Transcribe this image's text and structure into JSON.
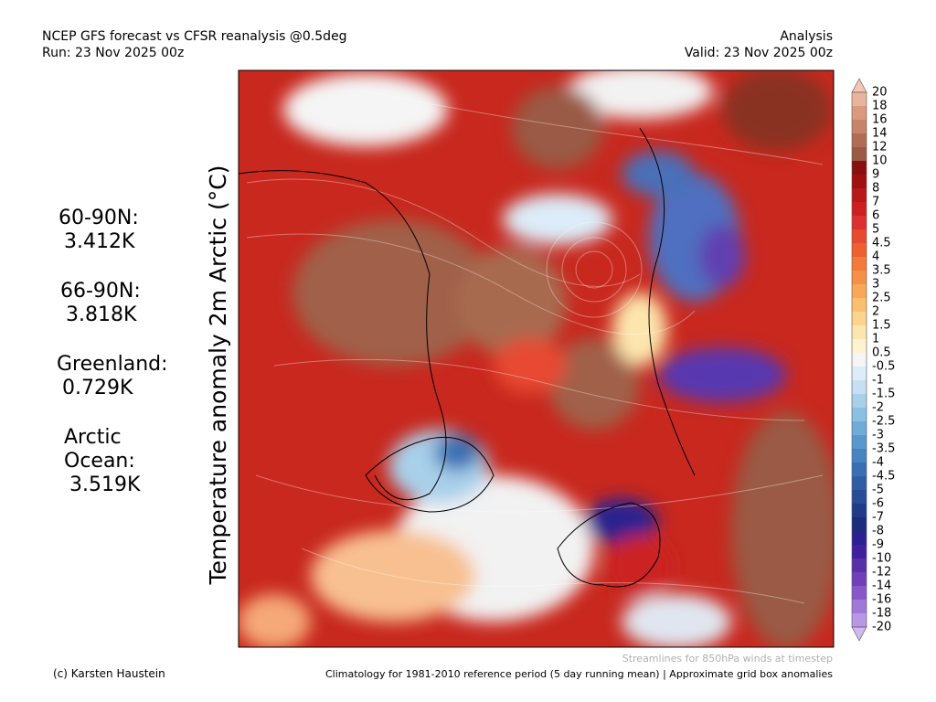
{
  "header": {
    "title": "NCEP GFS forecast vs CFSR reanalysis @0.5deg",
    "run": "Run: 23 Nov 2025 00z",
    "kind": "Analysis",
    "valid": "Valid: 23 Nov 2025 00z"
  },
  "axis_title": "Temperature anomaly 2m Arctic (°C)",
  "stats": [
    {
      "label": [
        "60-90N:"
      ],
      "value": "3.412K"
    },
    {
      "label": [
        "66-90N:"
      ],
      "value": "3.818K"
    },
    {
      "label": [
        "Greenland:"
      ],
      "value": "0.729K"
    },
    {
      "label": [
        "Arctic",
        "Ocean:"
      ],
      "value": "3.519K"
    }
  ],
  "colorbar": {
    "labels": [
      "20",
      "18",
      "16",
      "14",
      "12",
      "10",
      "9",
      "8",
      "7",
      "6",
      "5",
      "4.5",
      "4",
      "3.5",
      "3",
      "2.5",
      "2",
      "1.5",
      "1",
      "0.5",
      "-0.5",
      "-1",
      "-1.5",
      "-2",
      "-2.5",
      "-3",
      "-3.5",
      "-4",
      "-4.5",
      "-5",
      "-6",
      "-7",
      "-8",
      "-9",
      "-10",
      "-12",
      "-14",
      "-16",
      "-18",
      "-20"
    ],
    "colors": [
      "#f2c6b4",
      "#e8b49c",
      "#d99a80",
      "#c78468",
      "#b06c54",
      "#9a5a44",
      "#8a1010",
      "#a01010",
      "#b81818",
      "#cc2020",
      "#dd3030",
      "#e84a30",
      "#ee6030",
      "#f27a3a",
      "#f59048",
      "#f8a858",
      "#fac070",
      "#fcd48c",
      "#fde6ae",
      "#fef2d0",
      "#f5f5f5",
      "#dcecf8",
      "#c4e0f2",
      "#a8d0ea",
      "#8cc0e2",
      "#70acd8",
      "#5898cc",
      "#4884c0",
      "#3a70b2",
      "#305ea4",
      "#284c96",
      "#203c88",
      "#1c2c7a",
      "#2c2090",
      "#40209c",
      "#5830a8",
      "#7040b8",
      "#8858c8",
      "#a078d8",
      "#b898e4",
      "#d0b8f0"
    ]
  },
  "footer": {
    "credit": "(c) Karsten Haustein",
    "streamlines": "Streamlines for 850hPa winds at timestep",
    "climatology": "Climatology for 1981-2010 reference period (5 day running mean) | Approximate grid box anomalies"
  }
}
